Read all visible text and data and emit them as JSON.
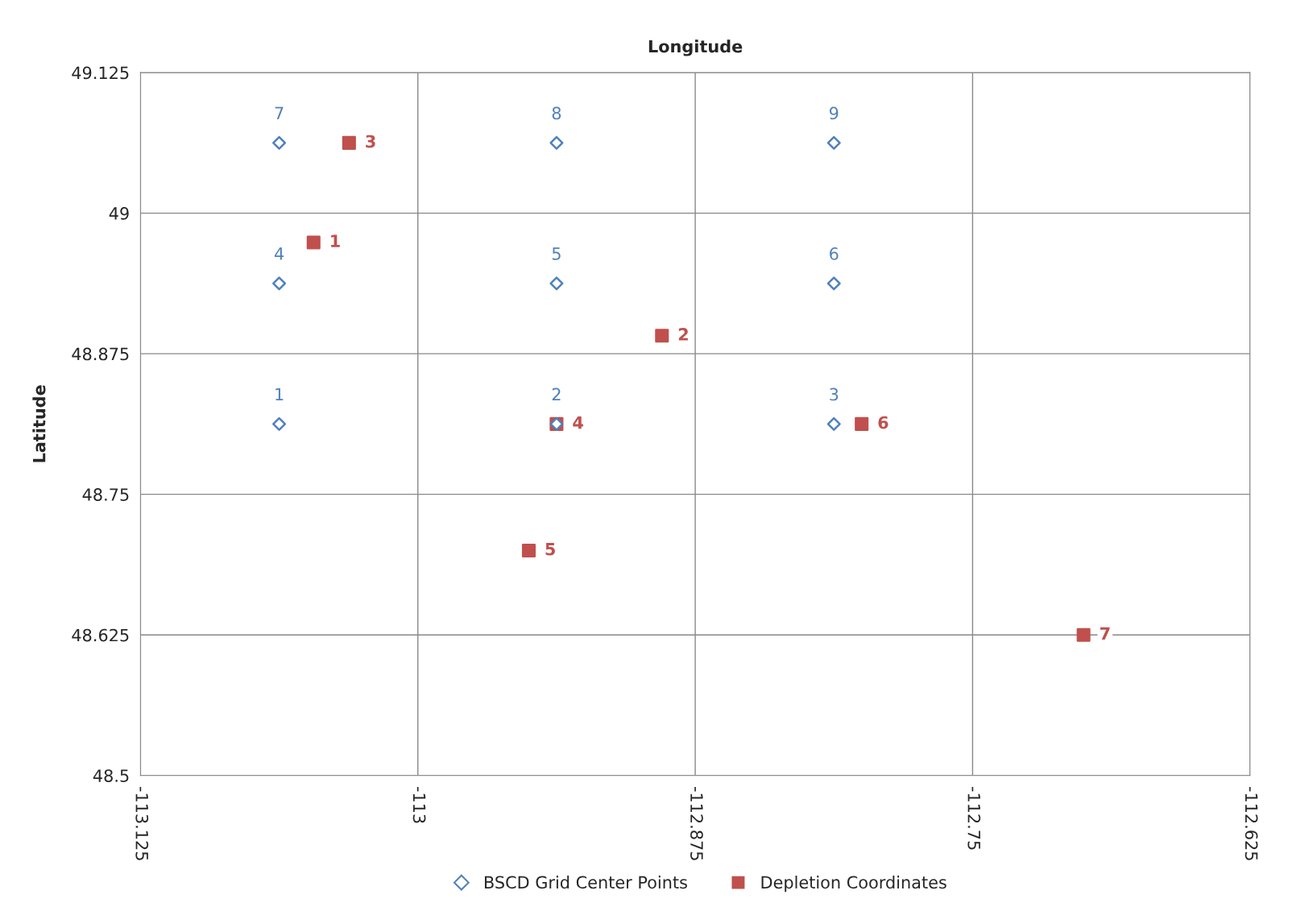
{
  "chart_data": {
    "type": "scatter",
    "xlabel": "Longitude",
    "ylabel": "Latitude",
    "xlim": [
      -113.125,
      -112.625
    ],
    "xticks": [
      -113.125,
      -113,
      -112.875,
      -112.75,
      -112.625
    ],
    "ylim": [
      48.5,
      49.125
    ],
    "yticks": [
      48.5,
      48.625,
      48.75,
      48.875,
      49,
      49.125
    ],
    "grid": true,
    "legend": "bottom",
    "series": [
      {
        "name": "BSCD Grid Center Points",
        "color": "#4f81bd",
        "marker": "diamond",
        "x": [
          -113.0625,
          -112.9375,
          -112.8125,
          -113.0625,
          -112.9375,
          -112.8125,
          -113.0625,
          -112.9375,
          -112.8125
        ],
        "values": [
          48.8125,
          48.8125,
          48.8125,
          48.9375,
          48.9375,
          48.9375,
          49.0625,
          49.0625,
          49.0625
        ]
      },
      {
        "name": "Depletion Coordinates",
        "color": "#c0504d",
        "marker": "square",
        "x": [
          -113.047,
          -112.89,
          -113.031,
          -112.9375,
          -112.95,
          -112.8,
          -112.7
        ],
        "values": [
          48.974,
          48.891,
          49.0625,
          48.8125,
          48.7,
          48.8125,
          48.625
        ]
      }
    ],
    "annotations": [
      {
        "text": "1",
        "x": -113.0625,
        "y": 48.8125
      },
      {
        "text": "2",
        "x": -112.9375,
        "y": 48.8125
      },
      {
        "text": "3",
        "x": -112.8125,
        "y": 48.8125
      },
      {
        "text": "4",
        "x": -113.0625,
        "y": 48.9375
      },
      {
        "text": "5",
        "x": -112.9375,
        "y": 48.9375
      },
      {
        "text": "6",
        "x": -112.8125,
        "y": 48.9375
      },
      {
        "text": "7",
        "x": -113.0625,
        "y": 49.0625
      },
      {
        "text": "8",
        "x": -112.9375,
        "y": 49.0625
      },
      {
        "text": "9",
        "x": -112.8125,
        "y": 49.0625
      },
      {
        "text": "1",
        "x": -113.047,
        "y": 48.974
      },
      {
        "text": "2",
        "x": -112.89,
        "y": 48.891
      },
      {
        "text": "3",
        "x": -113.031,
        "y": 49.0625
      },
      {
        "text": "4",
        "x": -112.9375,
        "y": 48.8125
      },
      {
        "text": "5",
        "x": -112.95,
        "y": 48.7
      },
      {
        "text": "6",
        "x": -112.8,
        "y": 48.8125
      },
      {
        "text": "7",
        "x": -112.7,
        "y": 48.625
      }
    ]
  }
}
